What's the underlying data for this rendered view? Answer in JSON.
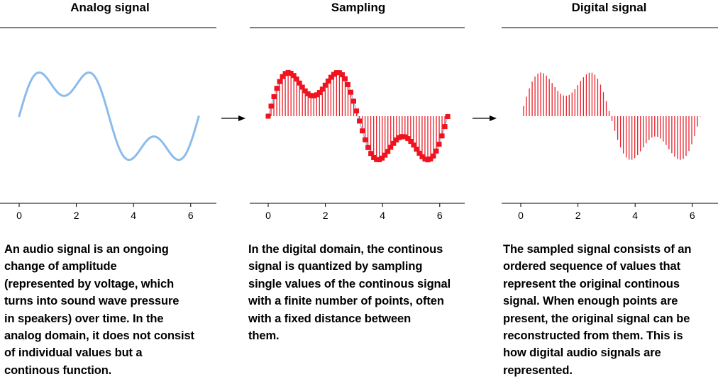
{
  "colors": {
    "analog_curve": "#8bbcec",
    "sample_stem": "#e8202a",
    "sample_marker": "#f0121f",
    "axis": "#000000"
  },
  "panels": [
    {
      "title": "Analog signal",
      "ticks": [
        "0",
        "2",
        "4",
        "6"
      ],
      "description": [
        "An audio signal is an ongoing",
        "change of amplitude",
        "(represented by voltage, which",
        "turns into sound wave pressure",
        "in speakers) over time. In the",
        "analog domain, it does not consist",
        "of individual values but a",
        "continous function."
      ]
    },
    {
      "title": "Sampling",
      "ticks": [
        "0",
        "2",
        "4",
        "6"
      ],
      "description": [
        "In the digital domain, the continous",
        "signal is quantized by sampling",
        "single values of the continous signal",
        "with a finite number of points, often",
        "with a fixed distance between",
        "them."
      ]
    },
    {
      "title": "Digital signal",
      "ticks": [
        "0",
        "2",
        "4",
        "6"
      ],
      "description": [
        "The sampled signal consists of an",
        "ordered sequence of values that",
        "represent the original continous",
        "signal. When enough points are",
        "present, the original signal can be",
        "reconstructed from them. This is",
        "how digital audio signals are",
        "represented."
      ]
    }
  ],
  "chart_data": [
    {
      "type": "line",
      "title": "Analog signal",
      "function": "sin(x) + 0.5*sin(3x)",
      "xlim": [
        0,
        6.28
      ],
      "ylim": [
        -1.3,
        1.3
      ],
      "xticks": [
        0,
        2,
        4,
        6
      ],
      "legend": "none"
    },
    {
      "type": "scatter",
      "title": "Sampling",
      "function": "sin(x) + 0.5*sin(3x)",
      "samples": 64,
      "xlim": [
        0,
        6.28
      ],
      "ylim": [
        -1.3,
        1.3
      ],
      "xticks": [
        0,
        2,
        4,
        6
      ],
      "legend": "none"
    },
    {
      "type": "bar",
      "title": "Digital signal",
      "function": "sin(x) + 0.5*sin(3x)",
      "samples": 64,
      "xlim": [
        0,
        6.28
      ],
      "ylim": [
        -1.3,
        1.3
      ],
      "xticks": [
        0,
        2,
        4,
        6
      ],
      "legend": "none"
    }
  ]
}
